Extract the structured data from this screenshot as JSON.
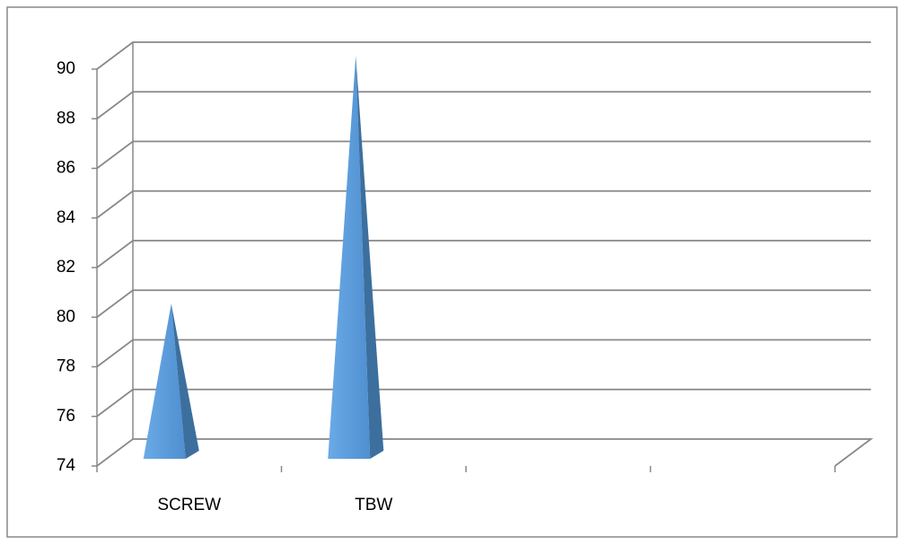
{
  "chart_data": {
    "type": "pyramid3d",
    "categories": [
      "SCREW",
      "TBW",
      null,
      null
    ],
    "values": [
      80,
      90,
      null,
      null
    ],
    "color": "#5b9bd5",
    "ylim": [
      74,
      90
    ],
    "yticks": [
      74,
      76,
      78,
      80,
      82,
      84,
      86,
      88,
      90
    ],
    "grid": true
  }
}
